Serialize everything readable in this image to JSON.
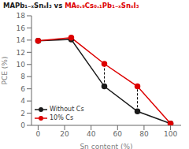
{
  "chart_data": {
    "type": "line",
    "title": [
      {
        "text": "MAPb₁₋ₓSnₓI₃ vs ",
        "color": "#1a1a1a"
      },
      {
        "text": "MA₀.₉Cs₀.₁Pb₁₋ₓSnₓI₃",
        "color": "#dd0000"
      }
    ],
    "xlabel": "Sn content (%)",
    "ylabel": "PCE (%)",
    "x": [
      0,
      25,
      50,
      75,
      100
    ],
    "series": [
      {
        "name": "Without Cs",
        "color": "#1a1a1a",
        "marker": "circle",
        "values": [
          13.9,
          14.1,
          6.4,
          2.3,
          0.3
        ]
      },
      {
        "name": "10% Cs",
        "color": "#dd0000",
        "marker": "circle",
        "values": [
          13.9,
          14.4,
          10.1,
          6.4,
          0.3
        ]
      }
    ],
    "dashed_lines": [
      {
        "x": 50,
        "y1": 6.4,
        "y2": 10.1,
        "color": "#000000",
        "line_style": "dashed"
      },
      {
        "x": 75,
        "y1": 2.3,
        "y2": 6.4,
        "color": "#000000",
        "line_style": "dashed"
      }
    ],
    "xlim": [
      -5,
      108
    ],
    "ylim": [
      0,
      18
    ],
    "xticks": [
      0,
      20,
      40,
      60,
      80,
      100
    ],
    "yticks": [
      0,
      2,
      4,
      6,
      8,
      10,
      12,
      14,
      16,
      18
    ],
    "grid": false,
    "legend": "lower left"
  }
}
